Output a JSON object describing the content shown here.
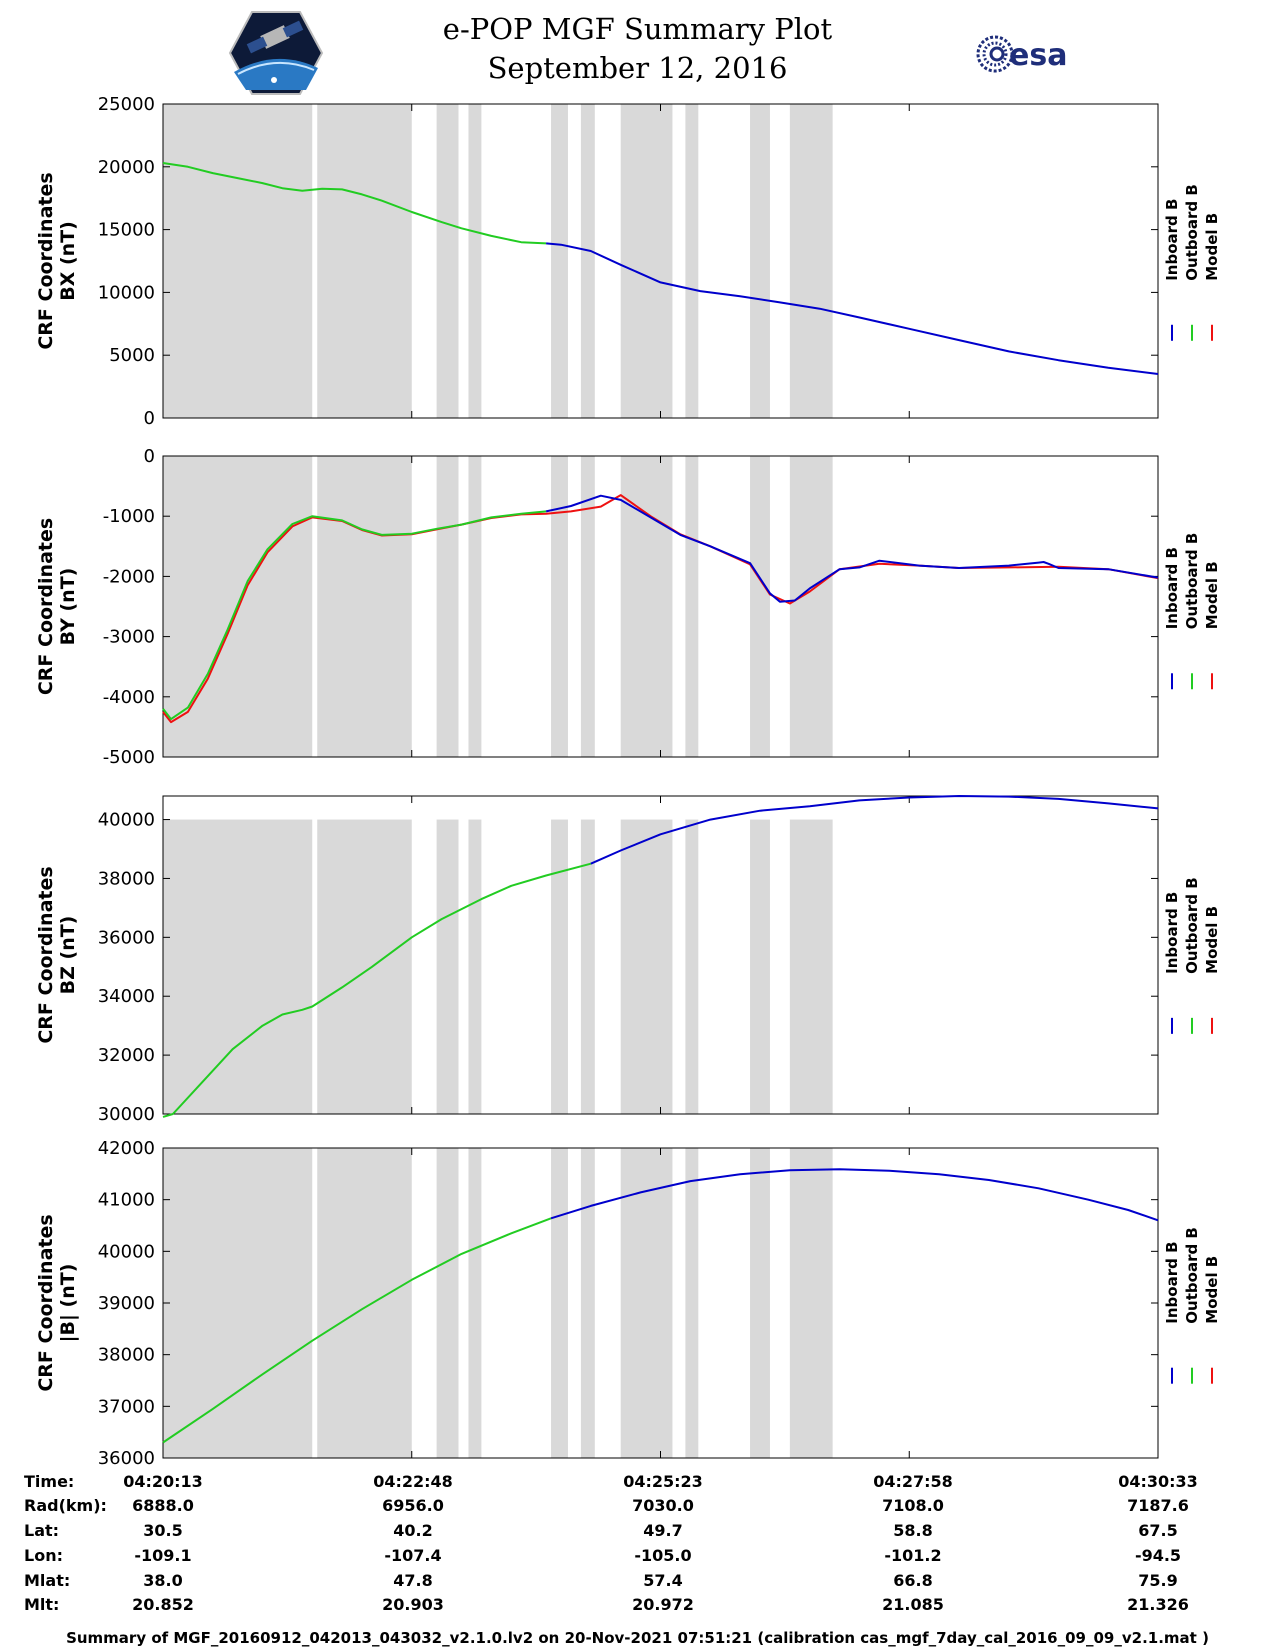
{
  "header": {
    "title": "e-POP MGF Summary Plot",
    "date": "September 12, 2016",
    "logos": {
      "left": "cassiope-mission-logo",
      "right": "esa-logo",
      "right_text": "esa"
    }
  },
  "colors": {
    "inboard": "#0000cc",
    "outboard": "#22cc22",
    "model": "#ee1111",
    "gap_shading": "#d9d9d9"
  },
  "chart_data": [
    {
      "type": "line",
      "ylabel_lines": [
        "CRF Coordinates",
        "BX (nT)"
      ],
      "ylim": [
        0,
        25000
      ],
      "yticks": [
        0,
        5000,
        10000,
        15000,
        20000,
        25000
      ],
      "legend": [
        "Inboard B",
        "Outboard B",
        "Model B"
      ],
      "series": [
        {
          "name": "Outboard B",
          "key": "outboard",
          "x": [
            0,
            0.25,
            0.5,
            0.75,
            1.0,
            1.2,
            1.4,
            1.6,
            1.8,
            2.0,
            2.2,
            2.5,
            2.8,
            3.0,
            3.3,
            3.6,
            3.85
          ],
          "y": [
            20300,
            20000,
            19500,
            19100,
            18700,
            18300,
            18100,
            18250,
            18200,
            17800,
            17300,
            16400,
            15600,
            15100,
            14500,
            14000,
            13900
          ]
        },
        {
          "name": "Inboard B",
          "key": "inboard",
          "x": [
            3.85,
            4.0,
            4.3,
            4.6,
            5.0,
            5.4,
            5.8,
            6.2,
            6.6,
            7.0,
            7.5,
            8.0,
            8.5,
            9.0,
            9.5,
            10.0
          ],
          "y": [
            13900,
            13800,
            13300,
            12200,
            10800,
            10100,
            9700,
            9200,
            8700,
            8000,
            7100,
            6200,
            5300,
            4600,
            4000,
            3500
          ]
        }
      ]
    },
    {
      "type": "line",
      "ylabel_lines": [
        "CRF Coordinates",
        "BY (nT)"
      ],
      "ylim": [
        -5000,
        0
      ],
      "yticks": [
        -5000,
        -4000,
        -3000,
        -2000,
        -1000,
        0
      ],
      "legend": [
        "Inboard B",
        "Outboard B",
        "Model B"
      ],
      "series": [
        {
          "name": "Model B",
          "key": "model",
          "x": [
            0,
            0.08,
            0.25,
            0.45,
            0.65,
            0.85,
            1.05,
            1.3,
            1.5,
            1.8,
            2.0,
            2.2,
            2.5,
            2.75,
            3.0,
            3.3,
            3.6,
            3.85,
            4.1,
            4.4,
            4.6,
            4.9,
            5.2,
            5.5,
            5.9,
            6.1,
            6.3,
            6.5,
            6.8,
            7.2,
            7.6,
            8.0,
            8.5,
            9.0,
            9.5,
            10.0
          ],
          "y": [
            -4250,
            -4420,
            -4250,
            -3700,
            -2950,
            -2150,
            -1600,
            -1170,
            -1020,
            -1080,
            -1230,
            -1320,
            -1300,
            -1220,
            -1140,
            -1030,
            -970,
            -960,
            -920,
            -840,
            -650,
            -1000,
            -1300,
            -1500,
            -1800,
            -2300,
            -2450,
            -2250,
            -1880,
            -1790,
            -1820,
            -1860,
            -1850,
            -1840,
            -1880,
            -2030
          ]
        },
        {
          "name": "Outboard B",
          "key": "outboard",
          "x": [
            0,
            0.08,
            0.25,
            0.45,
            0.65,
            0.85,
            1.05,
            1.3,
            1.5,
            1.8,
            2.0,
            2.2,
            2.5,
            2.75,
            3.0,
            3.3,
            3.6,
            3.85
          ],
          "y": [
            -4200,
            -4370,
            -4180,
            -3620,
            -2880,
            -2080,
            -1550,
            -1130,
            -1000,
            -1070,
            -1220,
            -1310,
            -1290,
            -1210,
            -1140,
            -1020,
            -960,
            -920
          ]
        },
        {
          "name": "Inboard B",
          "key": "inboard",
          "x": [
            3.85,
            4.1,
            4.4,
            4.6,
            4.9,
            5.2,
            5.5,
            5.9,
            6.1,
            6.2,
            6.35,
            6.5,
            6.8,
            7.0,
            7.2,
            7.6,
            8.0,
            8.5,
            8.8,
            8.85,
            8.9,
            9.0,
            9.5,
            10.0
          ],
          "y": [
            -920,
            -830,
            -660,
            -730,
            -1020,
            -1310,
            -1500,
            -1780,
            -2280,
            -2420,
            -2400,
            -2200,
            -1880,
            -1850,
            -1740,
            -1820,
            -1860,
            -1820,
            -1770,
            -1760,
            -1790,
            -1860,
            -1880,
            -2020
          ]
        }
      ]
    },
    {
      "type": "line",
      "ylabel_lines": [
        "CRF Coordinates",
        "BZ (nT)"
      ],
      "ylim": [
        30000,
        40800
      ],
      "yticks": [
        30000,
        32000,
        34000,
        36000,
        38000,
        40000
      ],
      "legend": [
        "Inboard B",
        "Outboard B",
        "Model B"
      ],
      "series": [
        {
          "name": "Outboard B",
          "key": "outboard",
          "x": [
            0,
            0.1,
            0.4,
            0.7,
            1.0,
            1.2,
            1.4,
            1.5,
            1.8,
            2.1,
            2.5,
            2.8,
            3.2,
            3.5,
            3.85,
            4.3
          ],
          "y": [
            29900,
            30000,
            31100,
            32200,
            33000,
            33380,
            33540,
            33650,
            34300,
            35000,
            36000,
            36620,
            37300,
            37750,
            38100,
            38500
          ]
        },
        {
          "name": "Inboard B",
          "key": "inboard",
          "x": [
            4.3,
            4.6,
            5.0,
            5.5,
            6.0,
            6.5,
            7.0,
            7.5,
            8.0,
            8.5,
            9.0,
            9.5,
            10.0
          ],
          "y": [
            38500,
            38950,
            39500,
            40000,
            40300,
            40450,
            40650,
            40750,
            40800,
            40780,
            40700,
            40550,
            40380
          ]
        }
      ]
    },
    {
      "type": "line",
      "ylabel_lines": [
        "CRF Coordinates",
        "|B| (nT)"
      ],
      "ylim": [
        36000,
        42000
      ],
      "yticks": [
        36000,
        37000,
        38000,
        39000,
        40000,
        41000,
        42000
      ],
      "legend": [
        "Inboard B",
        "Outboard B",
        "Model B"
      ],
      "series": [
        {
          "name": "Outboard B",
          "key": "outboard",
          "x": [
            0,
            0.5,
            1.0,
            1.5,
            2.0,
            2.5,
            3.0,
            3.5,
            3.9
          ],
          "y": [
            36300,
            36950,
            37620,
            38270,
            38880,
            39450,
            39950,
            40350,
            40640
          ]
        },
        {
          "name": "Inboard B",
          "key": "inboard",
          "x": [
            3.9,
            4.3,
            4.8,
            5.3,
            5.8,
            6.3,
            6.8,
            7.3,
            7.8,
            8.3,
            8.8,
            9.3,
            9.7,
            10.0
          ],
          "y": [
            40640,
            40880,
            41140,
            41360,
            41490,
            41570,
            41590,
            41560,
            41490,
            41380,
            41220,
            41000,
            40800,
            40600
          ]
        }
      ]
    }
  ],
  "x_axis": {
    "xlim": [
      0,
      10
    ],
    "tick_positions": [
      0,
      2.5,
      5,
      7.5,
      10
    ],
    "shaded_gaps": [
      [
        0,
        1.5
      ],
      [
        1.55,
        2.5
      ],
      [
        2.75,
        2.97
      ],
      [
        3.07,
        3.2
      ],
      [
        3.9,
        4.07
      ],
      [
        4.2,
        4.34
      ],
      [
        4.6,
        5.12
      ],
      [
        5.25,
        5.38
      ],
      [
        5.9,
        6.1
      ],
      [
        6.3,
        6.73
      ]
    ]
  },
  "annotations": {
    "row_labels": [
      "Time:",
      "Rad(km):",
      "Lat:",
      "Lon:",
      "Mlat:",
      "Mlt:"
    ],
    "columns": [
      [
        "04:20:13",
        "6888.0",
        "30.5",
        "-109.1",
        "38.0",
        "20.852"
      ],
      [
        "04:22:48",
        "6956.0",
        "40.2",
        "-107.4",
        "47.8",
        "20.903"
      ],
      [
        "04:25:23",
        "7030.0",
        "49.7",
        "-105.0",
        "57.4",
        "20.972"
      ],
      [
        "04:27:58",
        "7108.0",
        "58.8",
        "-101.2",
        "66.8",
        "21.085"
      ],
      [
        "04:30:33",
        "7187.6",
        "67.5",
        "-94.5",
        "75.9",
        "21.326"
      ]
    ]
  },
  "footer": "Summary of MGF_20160912_042013_043032_v2.1.0.lv2 on 20-Nov-2021 07:51:21 (calibration cas_mgf_7day_cal_2016_09_09_v2.1.mat )"
}
